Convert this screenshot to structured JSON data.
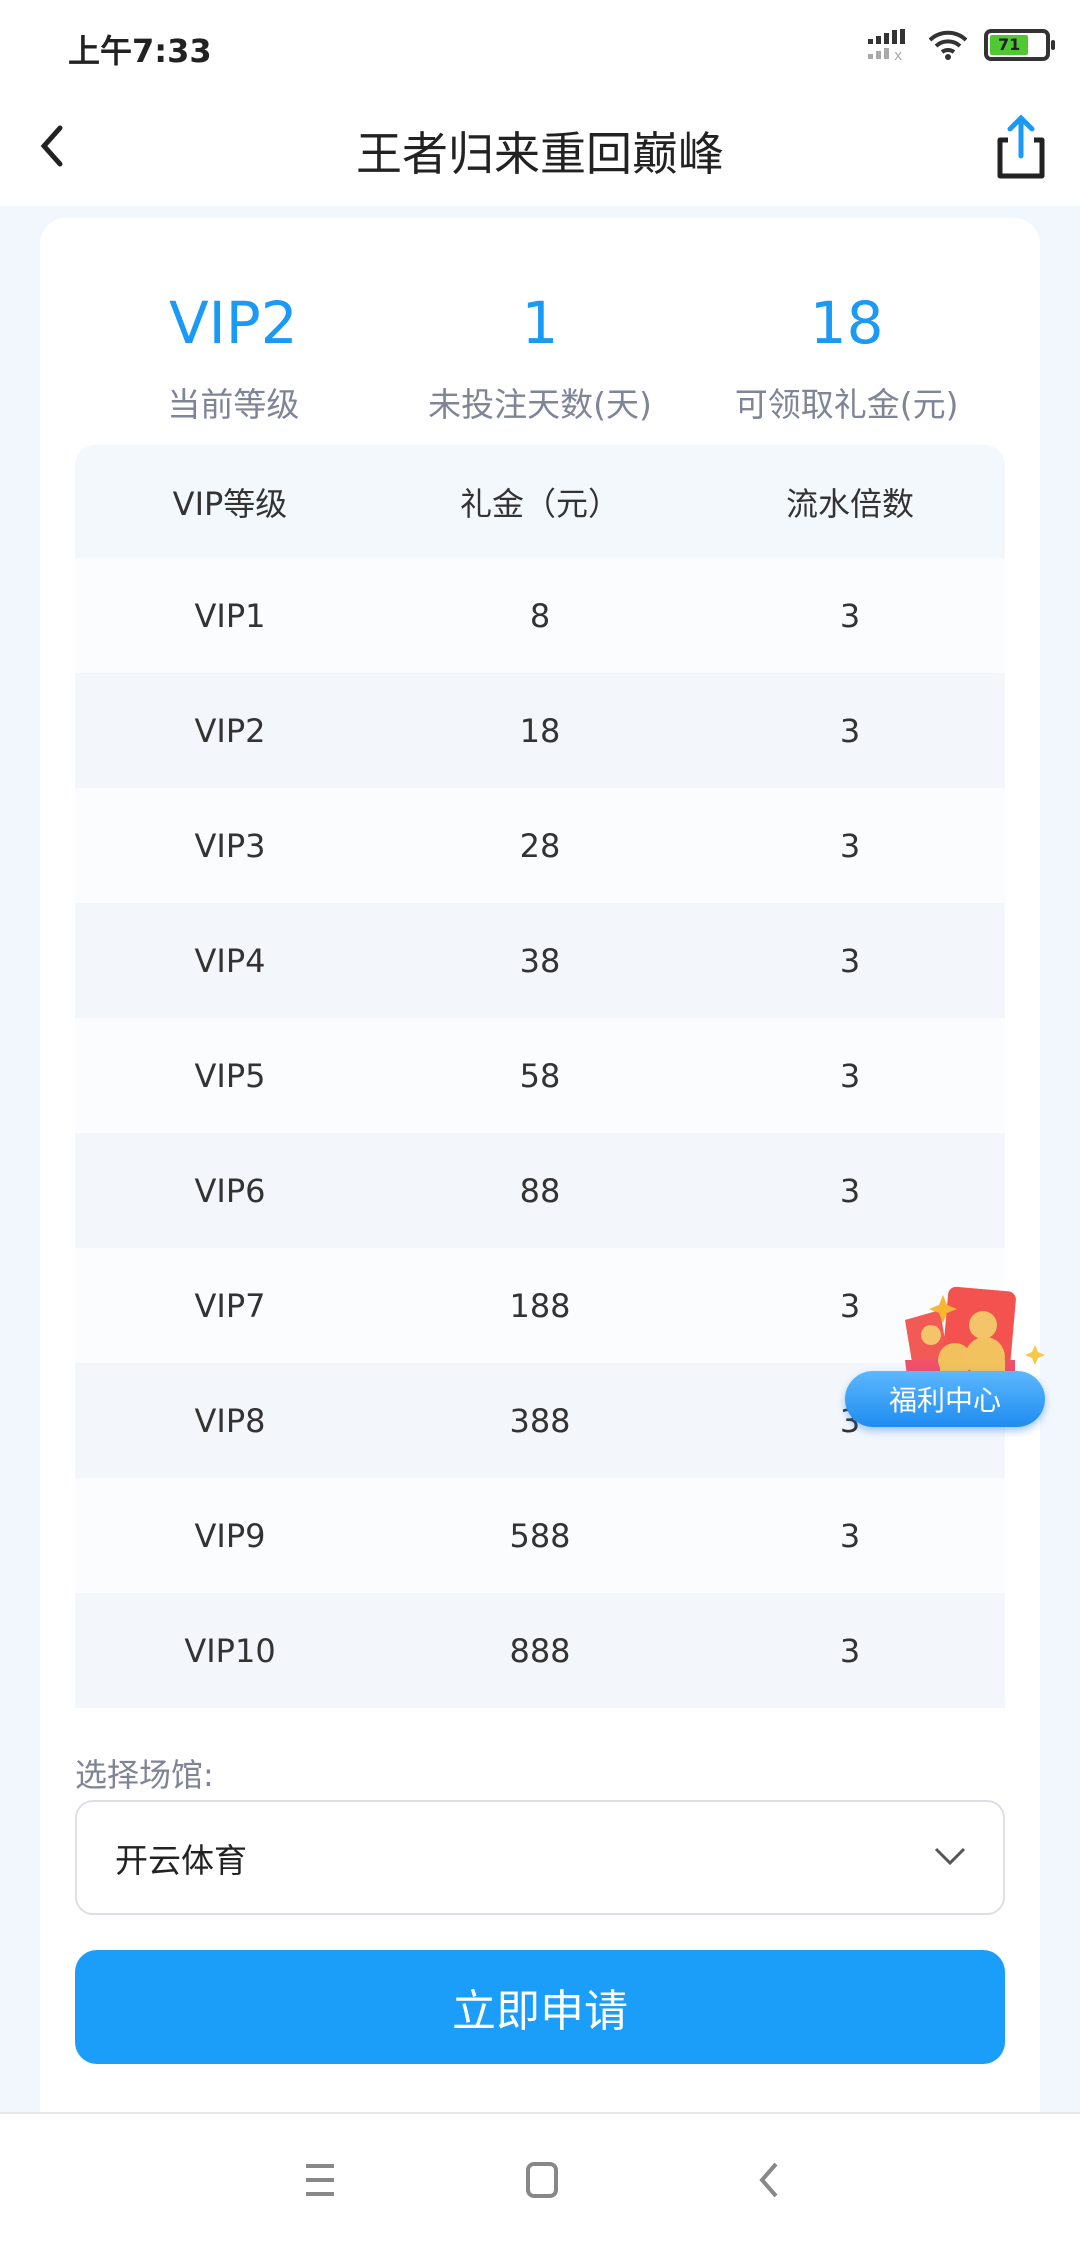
{
  "status_bar": {
    "time": "上午7:33",
    "battery": "71"
  },
  "header": {
    "title": "王者归来重回巅峰"
  },
  "stats": [
    {
      "value": "VIP2",
      "label": "当前等级"
    },
    {
      "value": "1",
      "label": "未投注天数(天)"
    },
    {
      "value": "18",
      "label": "可领取礼金(元)"
    }
  ],
  "table": {
    "headers": [
      "VIP等级",
      "礼金（元）",
      "流水倍数"
    ],
    "rows": [
      [
        "VIP1",
        "8",
        "3"
      ],
      [
        "VIP2",
        "18",
        "3"
      ],
      [
        "VIP3",
        "28",
        "3"
      ],
      [
        "VIP4",
        "38",
        "3"
      ],
      [
        "VIP5",
        "58",
        "3"
      ],
      [
        "VIP6",
        "88",
        "3"
      ],
      [
        "VIP7",
        "188",
        "3"
      ],
      [
        "VIP8",
        "388",
        "3"
      ],
      [
        "VIP9",
        "588",
        "3"
      ],
      [
        "VIP10",
        "888",
        "3"
      ]
    ]
  },
  "venue": {
    "label": "选择场馆:",
    "selected": "开云体育"
  },
  "apply_button": "立即申请",
  "promo": {
    "label": "福利中心"
  },
  "colors": {
    "accent": "#1a9ef9",
    "stat_value": "#1a9af5"
  }
}
